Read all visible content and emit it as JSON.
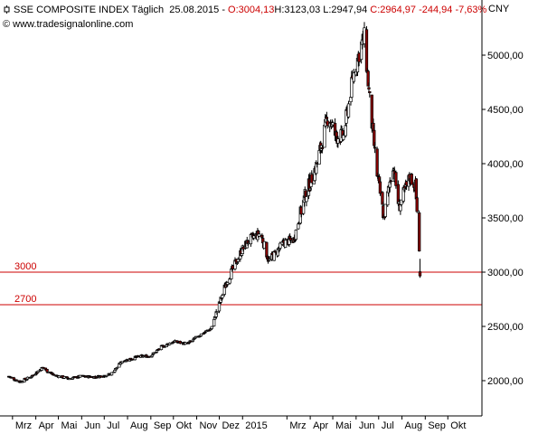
{
  "header": {
    "symbol_name": "SSE COMPOSITE INDEX",
    "period": "Täglich",
    "date": "25.08.2015",
    "open": "O:3004,13",
    "high": "H:3123,03",
    "low": "L:2947,94",
    "close": "C:2964,97",
    "change": "-244,94",
    "change_pct": "-7,63%",
    "currency": "CNY",
    "copyright": "© www.tradesignalonline.com"
  },
  "colors": {
    "up_candle": "#ffffff",
    "down_candle": "#8b0000",
    "outline": "#000000",
    "level_line": "#cc0000",
    "axis": "#000000"
  },
  "chart_data": {
    "type": "candlestick",
    "title": "SSE COMPOSITE INDEX",
    "ylim": [
      1800,
      5400
    ],
    "y_ticks": [
      "5000,00",
      "4500,00",
      "4000,00",
      "3500,00",
      "3000,00",
      "2500,00",
      "2000,00"
    ],
    "y_tick_values": [
      5000,
      4500,
      4000,
      3500,
      3000,
      2500,
      2000
    ],
    "x_labels": [
      "Mrz",
      "Apr",
      "Mai",
      "Jun",
      "Jul",
      "Aug",
      "Sep",
      "Okt",
      "Nov",
      "Dez",
      "2015",
      "Mrz",
      "Apr",
      "Mai",
      "Jun",
      "Jul",
      "Aug",
      "Sep",
      "Okt"
    ],
    "levels": [
      {
        "label": "3000",
        "value": 3000
      },
      {
        "label": "2700",
        "value": 2700
      }
    ],
    "close_path": [
      [
        "2014-02-24",
        2040
      ],
      [
        "2014-03-10",
        1990
      ],
      [
        "2014-03-24",
        2030
      ],
      [
        "2014-04-10",
        2120
      ],
      [
        "2014-04-25",
        2050
      ],
      [
        "2014-05-15",
        2020
      ],
      [
        "2014-06-01",
        2040
      ],
      [
        "2014-06-20",
        2035
      ],
      [
        "2014-07-10",
        2060
      ],
      [
        "2014-07-25",
        2180
      ],
      [
        "2014-08-15",
        2220
      ],
      [
        "2014-09-01",
        2230
      ],
      [
        "2014-09-15",
        2310
      ],
      [
        "2014-10-01",
        2360
      ],
      [
        "2014-10-20",
        2340
      ],
      [
        "2014-11-05",
        2420
      ],
      [
        "2014-11-20",
        2480
      ],
      [
        "2014-12-01",
        2700
      ],
      [
        "2014-12-10",
        2900
      ],
      [
        "2014-12-31",
        3200
      ],
      [
        "2015-01-10",
        3300
      ],
      [
        "2015-01-25",
        3360
      ],
      [
        "2015-02-05",
        3100
      ],
      [
        "2015-02-25",
        3270
      ],
      [
        "2015-03-10",
        3300
      ],
      [
        "2015-03-25",
        3700
      ],
      [
        "2015-04-10",
        4000
      ],
      [
        "2015-04-25",
        4450
      ],
      [
        "2015-05-05",
        4250
      ],
      [
        "2015-05-15",
        4250
      ],
      [
        "2015-05-28",
        4800
      ],
      [
        "2015-06-08",
        5100
      ],
      [
        "2015-06-12",
        5160
      ],
      [
        "2015-06-20",
        4500
      ],
      [
        "2015-06-29",
        3900
      ],
      [
        "2015-07-08",
        3500
      ],
      [
        "2015-07-20",
        4000
      ],
      [
        "2015-07-28",
        3600
      ],
      [
        "2015-08-12",
        3880
      ],
      [
        "2015-08-19",
        3790
      ],
      [
        "2015-08-24",
        3210
      ],
      [
        "2015-08-25",
        2964.97
      ]
    ]
  }
}
